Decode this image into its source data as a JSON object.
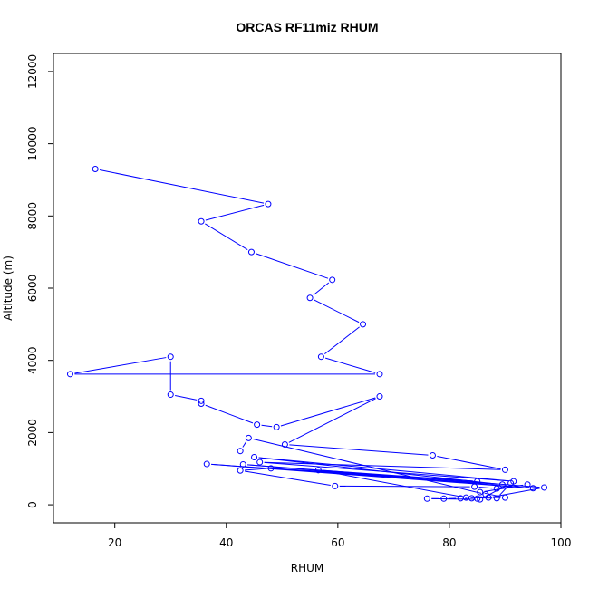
{
  "chart_data": {
    "type": "line",
    "title": "ORCAS RF11miz RHUM",
    "xlabel": "RHUM",
    "ylabel": "Altitude (m)",
    "xlim": [
      9,
      100
    ],
    "ylim": [
      -500,
      12500
    ],
    "x_ticks": [
      20,
      40,
      60,
      80,
      100
    ],
    "y_ticks": [
      0,
      2000,
      4000,
      6000,
      8000,
      10000,
      12000
    ],
    "grid": false,
    "legend": "none",
    "color": "#0000ff",
    "marker": "open-circle",
    "series": [
      {
        "points": [
          [
            16.5,
            9300
          ],
          [
            47.5,
            8330
          ],
          [
            35.5,
            7850
          ],
          [
            44.5,
            7000
          ],
          [
            59.0,
            6230
          ],
          [
            55.0,
            5730
          ],
          [
            64.5,
            5000
          ],
          [
            57.0,
            4100
          ],
          [
            67.5,
            3620
          ],
          [
            12.0,
            3620
          ],
          [
            30.0,
            4100
          ],
          [
            30.0,
            3050
          ],
          [
            35.5,
            2880
          ],
          [
            35.5,
            2800
          ],
          [
            45.5,
            2220
          ],
          [
            49.0,
            2150
          ],
          [
            67.5,
            3000
          ],
          [
            50.5,
            1670
          ],
          [
            77.0,
            1370
          ],
          [
            90.0,
            970
          ],
          [
            46.0,
            1180
          ],
          [
            91.5,
            650
          ],
          [
            45.0,
            1320
          ],
          [
            89.5,
            560
          ],
          [
            36.5,
            1130
          ],
          [
            95.0,
            460
          ],
          [
            43.0,
            1120
          ],
          [
            97.0,
            480
          ],
          [
            87.0,
            200
          ],
          [
            90.0,
            200
          ],
          [
            85.5,
            350
          ],
          [
            94.0,
            560
          ],
          [
            88.5,
            450
          ],
          [
            84.5,
            500
          ],
          [
            59.5,
            520
          ],
          [
            42.5,
            950
          ],
          [
            48.0,
            1010
          ],
          [
            85.0,
            650
          ],
          [
            56.5,
            960
          ],
          [
            83.0,
            200
          ],
          [
            88.5,
            180
          ],
          [
            91.0,
            600
          ],
          [
            85.5,
            150
          ],
          [
            76.0,
            170
          ],
          [
            79.0,
            170
          ],
          [
            82.0,
            180
          ],
          [
            84.0,
            180
          ],
          [
            85.0,
            170
          ],
          [
            86.5,
            290
          ],
          [
            44.0,
            1850
          ],
          [
            42.5,
            1490
          ]
        ]
      }
    ]
  }
}
